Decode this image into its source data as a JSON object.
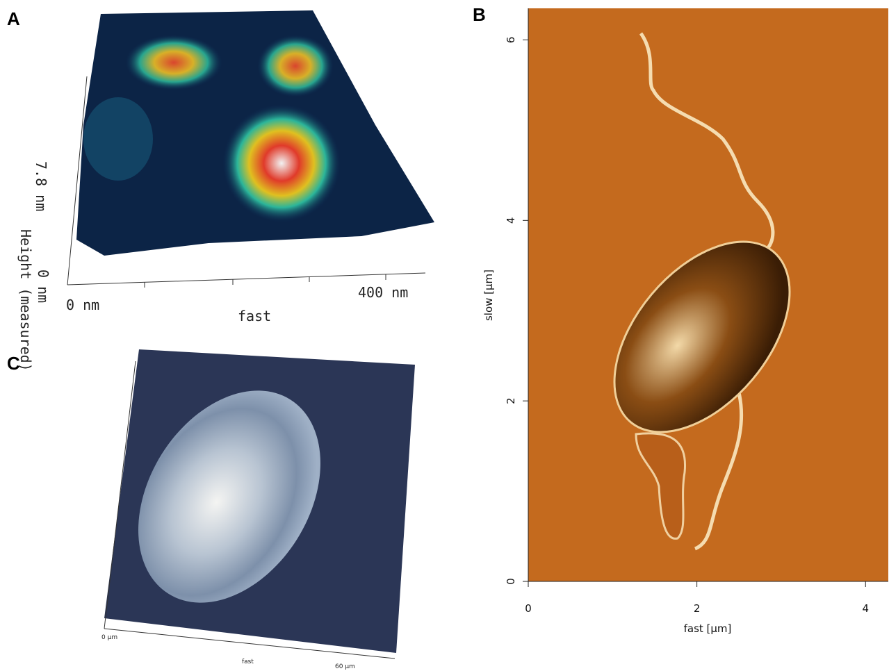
{
  "panels": [
    {
      "label": "A",
      "axis_vertical": "Height (measured)",
      "z_max": "7.8 nm",
      "z_min": "0 nm",
      "x_axis_label": "fast",
      "x_start": "0 nm",
      "x_end": "400 nm"
    },
    {
      "label": "B",
      "xlabel": "fast [µm]",
      "ylabel": "slow [µm]",
      "xlim": [
        0,
        4.27
      ],
      "ylim": [
        0,
        6.35
      ],
      "xticks": [
        0,
        2,
        4
      ],
      "yticks": [
        0,
        2,
        4,
        6
      ]
    },
    {
      "label": "C",
      "x_axis_label": "fast",
      "x_start": "0 µm",
      "x_end": "60 µm"
    }
  ]
}
